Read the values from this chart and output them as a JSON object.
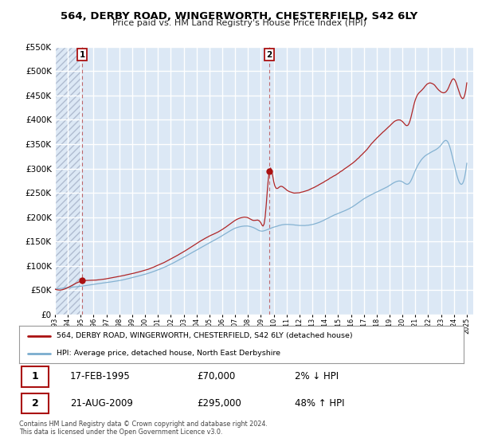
{
  "title": "564, DERBY ROAD, WINGERWORTH, CHESTERFIELD, S42 6LY",
  "subtitle": "Price paid vs. HM Land Registry's House Price Index (HPI)",
  "legend_label_red": "564, DERBY ROAD, WINGERWORTH, CHESTERFIELD, S42 6LY (detached house)",
  "legend_label_blue": "HPI: Average price, detached house, North East Derbyshire",
  "annotation1_date": "17-FEB-1995",
  "annotation1_price": "£70,000",
  "annotation1_hpi": "2% ↓ HPI",
  "annotation2_date": "21-AUG-2009",
  "annotation2_price": "£295,000",
  "annotation2_hpi": "48% ↑ HPI",
  "copyright": "Contains HM Land Registry data © Crown copyright and database right 2024.\nThis data is licensed under the Open Government Licence v3.0.",
  "ylim": [
    0,
    550000
  ],
  "yticks": [
    0,
    50000,
    100000,
    150000,
    200000,
    250000,
    300000,
    350000,
    400000,
    450000,
    500000,
    550000
  ],
  "bg_color": "#dce8f5",
  "grid_color": "#ffffff",
  "sale1_x": 1995.12,
  "sale1_y": 70000,
  "sale2_x": 2009.64,
  "sale2_y": 295000,
  "red_color": "#aa1111",
  "blue_color": "#7aacce",
  "xmin": 1993.0,
  "xmax": 2025.5,
  "hatch_xmax": 1995.0
}
